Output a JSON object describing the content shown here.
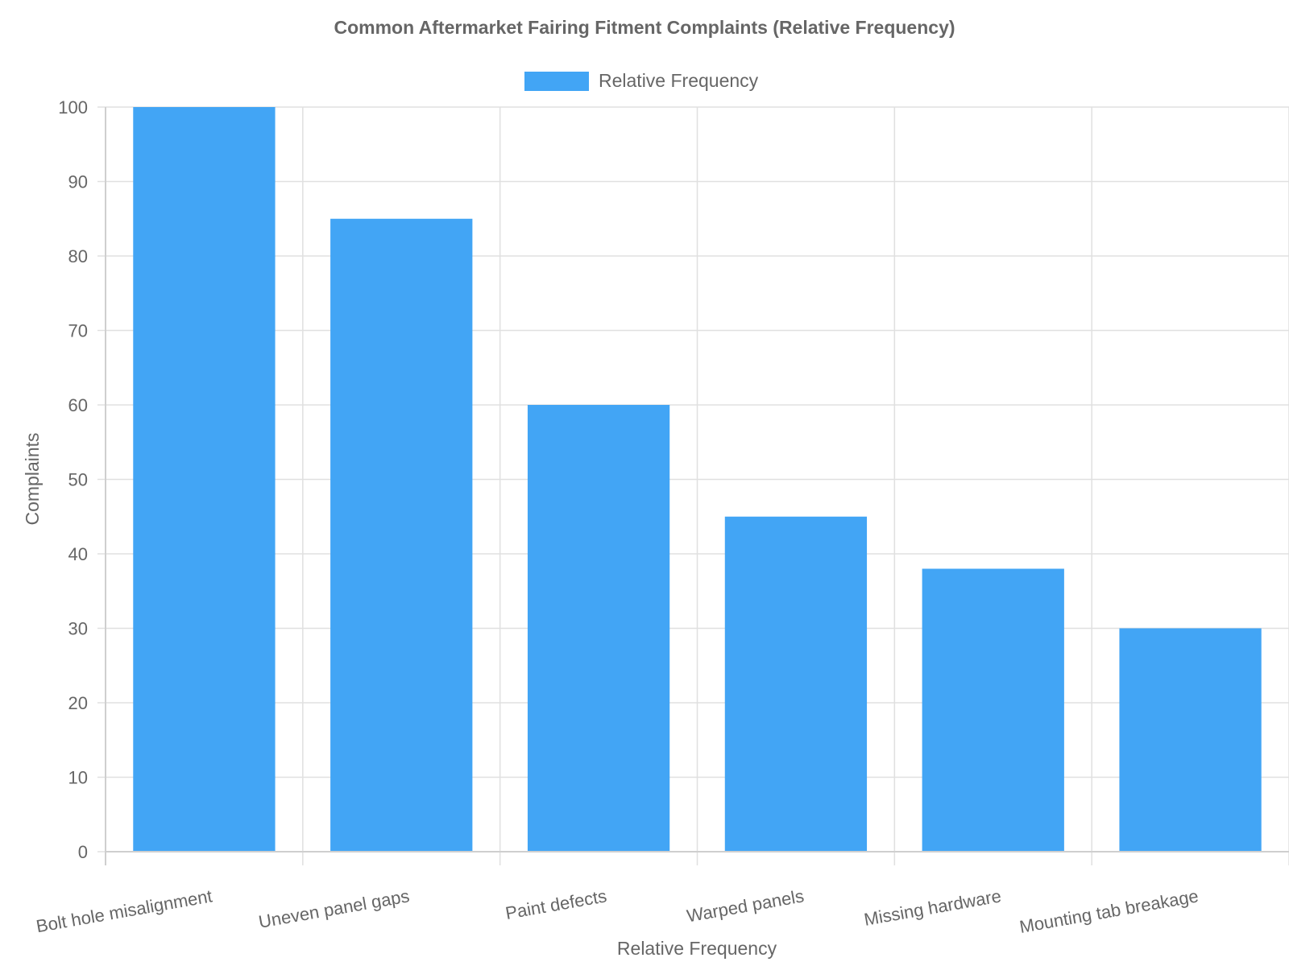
{
  "chart_data": {
    "type": "bar",
    "title": "Common Aftermarket Fairing Fitment Complaints (Relative Frequency)",
    "categories": [
      "Bolt hole misalignment",
      "Uneven panel gaps",
      "Paint defects",
      "Warped panels",
      "Missing hardware",
      "Mounting tab breakage"
    ],
    "series": [
      {
        "name": "Relative Frequency",
        "values": [
          100,
          85,
          60,
          45,
          38,
          30
        ],
        "color": "#42a5f5"
      }
    ],
    "xlabel": "Relative Frequency",
    "ylabel": "Complaints",
    "ylim": [
      0,
      100
    ],
    "yticks": [
      0,
      10,
      20,
      30,
      40,
      50,
      60,
      70,
      80,
      90,
      100
    ],
    "grid": true,
    "legend": "top-center"
  }
}
